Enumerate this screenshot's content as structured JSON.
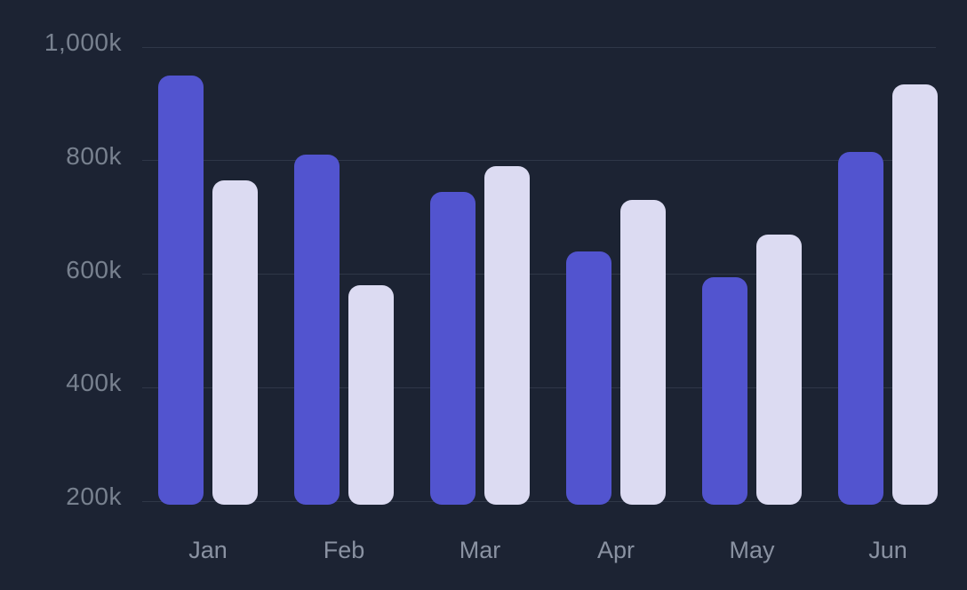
{
  "chart_data": {
    "type": "bar",
    "title": "",
    "categories": [
      "Jan",
      "Feb",
      "Mar",
      "Apr",
      "May",
      "Jun"
    ],
    "series": [
      {
        "name": "series-1",
        "color": "#5254cf",
        "values_k": [
          950,
          810,
          745,
          640,
          595,
          815
        ]
      },
      {
        "name": "series-2",
        "color": "#dcdbf2",
        "values_k": [
          765,
          580,
          790,
          730,
          670,
          935
        ]
      }
    ],
    "unit": "k",
    "y_ticks": [
      {
        "value_k": 1000,
        "label": "1,000k"
      },
      {
        "value_k": 800,
        "label": "800k"
      },
      {
        "value_k": 600,
        "label": "600k"
      },
      {
        "value_k": 400,
        "label": "400k"
      },
      {
        "value_k": 200,
        "label": "200k"
      }
    ],
    "ylim_k": [
      200,
      1000
    ],
    "grid": "horizontal",
    "legend": "none",
    "colors": {
      "background": "#1c2333",
      "gridline": "#2f3748",
      "y_label_text": "#78818f",
      "x_label_text": "#8a92a2",
      "bar_primary": "#5254cf",
      "bar_secondary": "#dcdbf2"
    }
  }
}
